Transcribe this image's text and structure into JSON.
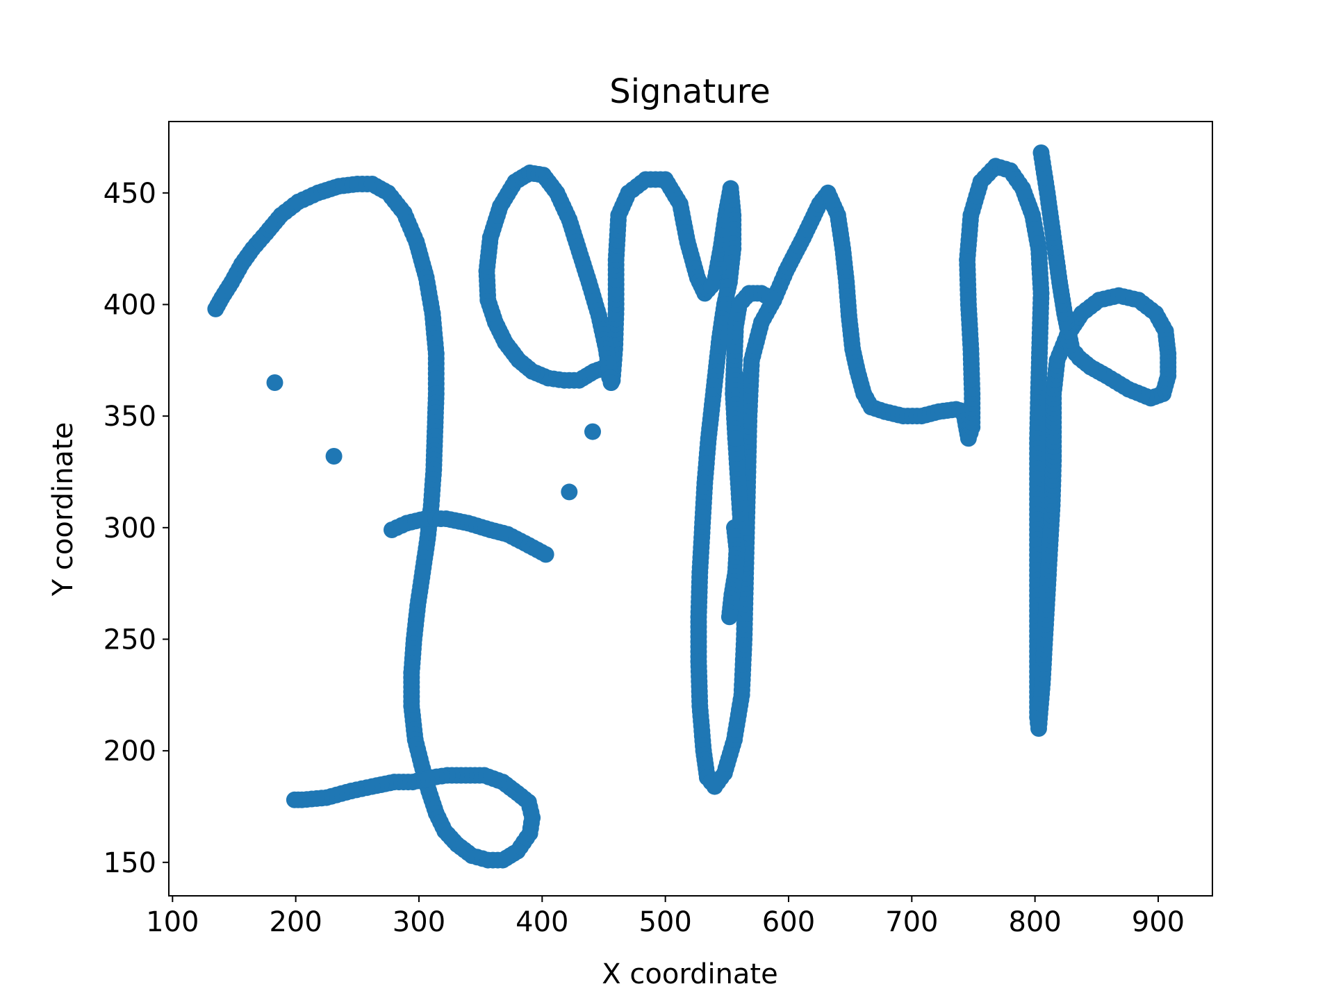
{
  "chart_data": {
    "type": "scatter",
    "title": "Signature",
    "xlabel": "X coordinate",
    "ylabel": "Y coordinate",
    "xlim": [
      97,
      944
    ],
    "ylim": [
      135,
      482
    ],
    "xticks": [
      100,
      200,
      300,
      400,
      500,
      600,
      700,
      800,
      900
    ],
    "yticks": [
      150,
      200,
      250,
      300,
      350,
      400,
      450
    ],
    "grid": false,
    "color": "#1f77b4",
    "series": [
      {
        "strokes": [
          [
            [
              135,
              398
            ],
            [
              140,
              403
            ],
            [
              148,
              410
            ],
            [
              156,
              418
            ],
            [
              165,
              425
            ],
            [
              176,
              432
            ],
            [
              188,
              440
            ],
            [
              202,
              446
            ],
            [
              218,
              450
            ],
            [
              235,
              453
            ],
            [
              250,
              454
            ],
            [
              262,
              454
            ],
            [
              275,
              450
            ],
            [
              288,
              441
            ],
            [
              298,
              428
            ],
            [
              306,
              412
            ],
            [
              311,
              396
            ],
            [
              314,
              378
            ],
            [
              314,
              360
            ],
            [
              313,
              343
            ],
            [
              312,
              326
            ],
            [
              310,
              310
            ],
            [
              307,
              295
            ],
            [
              303,
              280
            ],
            [
              299,
              265
            ],
            [
              296,
              250
            ],
            [
              294,
              235
            ],
            [
              294,
              220
            ],
            [
              297,
              205
            ],
            [
              302,
              194
            ],
            [
              308,
              182
            ],
            [
              314,
              172
            ],
            [
              321,
              164
            ],
            [
              331,
              158
            ],
            [
              343,
              153
            ],
            [
              356,
              151
            ],
            [
              368,
              151
            ],
            [
              380,
              155
            ],
            [
              390,
              163
            ],
            [
              392,
              170
            ],
            [
              389,
              177
            ],
            [
              380,
              181
            ],
            [
              368,
              186
            ],
            [
              353,
              189
            ],
            [
              338,
              189
            ],
            [
              323,
              189
            ],
            [
              310,
              188
            ],
            [
              295,
              186
            ],
            [
              280,
              186
            ],
            [
              262,
              184
            ],
            [
              245,
              182
            ],
            [
              225,
              179
            ],
            [
              205,
              178
            ],
            [
              199,
              178
            ]
          ],
          [
            [
              278,
              299
            ],
            [
              290,
              302
            ],
            [
              305,
              304
            ],
            [
              322,
              304
            ],
            [
              340,
              302
            ],
            [
              358,
              299
            ],
            [
              372,
              297
            ],
            [
              386,
              293
            ],
            [
              403,
              288
            ]
          ],
          [
            [
              457,
              366
            ],
            [
              459,
              380
            ],
            [
              460,
              398
            ],
            [
              460,
              420
            ],
            [
              462,
              440
            ],
            [
              470,
              450
            ],
            [
              484,
              456
            ],
            [
              500,
              456
            ],
            [
              512,
              445
            ],
            [
              518,
              428
            ],
            [
              526,
              412
            ],
            [
              532,
              405
            ],
            [
              540,
              410
            ],
            [
              545,
              425
            ],
            [
              549,
              440
            ],
            [
              553,
              452
            ],
            [
              555,
              440
            ],
            [
              555,
              425
            ],
            [
              552,
              410
            ],
            [
              548,
              400
            ],
            [
              544,
              385
            ],
            [
              541,
              370
            ],
            [
              538,
              355
            ],
            [
              535,
              340
            ],
            [
              532,
              320
            ],
            [
              530,
              300
            ],
            [
              528,
              280
            ],
            [
              527,
              260
            ],
            [
              527,
              240
            ],
            [
              528,
              220
            ],
            [
              531,
              200
            ],
            [
              534,
              188
            ],
            [
              540,
              184
            ],
            [
              548,
              190
            ],
            [
              556,
              205
            ],
            [
              562,
              225
            ],
            [
              564,
              250
            ],
            [
              565,
              275
            ],
            [
              566,
              300
            ],
            [
              567,
              325
            ],
            [
              568,
              350
            ],
            [
              570,
              375
            ],
            [
              578,
              392
            ],
            [
              588,
              402
            ],
            [
              598,
              415
            ],
            [
              612,
              430
            ],
            [
              625,
              445
            ],
            [
              632,
              450
            ],
            [
              640,
              440
            ],
            [
              644,
              425
            ],
            [
              647,
              410
            ],
            [
              649,
              395
            ],
            [
              652,
              380
            ],
            [
              656,
              370
            ],
            [
              661,
              360
            ],
            [
              667,
              354
            ],
            [
              678,
              352
            ],
            [
              693,
              350
            ],
            [
              708,
              350
            ],
            [
              722,
              352
            ],
            [
              736,
              353
            ],
            [
              742,
              352
            ],
            [
              746,
              340
            ],
            [
              749,
              345
            ],
            [
              749,
              360
            ],
            [
              748,
              380
            ],
            [
              746,
              400
            ],
            [
              745,
              420
            ],
            [
              748,
              440
            ],
            [
              756,
              455
            ],
            [
              768,
              462
            ],
            [
              780,
              460
            ],
            [
              790,
              452
            ],
            [
              798,
              440
            ],
            [
              803,
              425
            ],
            [
              805,
              405
            ],
            [
              804,
              385
            ],
            [
              803,
              365
            ],
            [
              802,
              340
            ],
            [
              802,
              315
            ],
            [
              802,
              290
            ],
            [
              802,
              265
            ],
            [
              802,
              240
            ],
            [
              802,
              215
            ],
            [
              803,
              210
            ],
            [
              806,
              230
            ],
            [
              808,
              250
            ],
            [
              810,
              270
            ],
            [
              812,
              290
            ],
            [
              814,
              310
            ],
            [
              815,
              330
            ],
            [
              815,
              345
            ],
            [
              815,
              360
            ],
            [
              818,
              375
            ],
            [
              826,
              386
            ],
            [
              838,
              396
            ],
            [
              852,
              402
            ],
            [
              868,
              404
            ],
            [
              884,
              402
            ],
            [
              898,
              396
            ],
            [
              906,
              388
            ],
            [
              908,
              378
            ],
            [
              908,
              368
            ],
            [
              904,
              360
            ],
            [
              894,
              358
            ],
            [
              876,
              362
            ],
            [
              858,
              368
            ],
            [
              845,
              372
            ],
            [
              836,
              376
            ],
            [
              830,
              380
            ],
            [
              824,
              396
            ],
            [
              820,
              410
            ],
            [
              815,
              430
            ],
            [
              810,
              450
            ],
            [
              805,
              468
            ]
          ],
          [
            [
              456,
              365
            ],
            [
              452,
              372
            ],
            [
              442,
              370
            ],
            [
              430,
              366
            ],
            [
              418,
              366
            ],
            [
              405,
              367
            ],
            [
              392,
              370
            ],
            [
              381,
              375
            ],
            [
              370,
              383
            ],
            [
              362,
              392
            ],
            [
              356,
              402
            ],
            [
              355,
              415
            ],
            [
              358,
              430
            ],
            [
              366,
              444
            ],
            [
              378,
              455
            ],
            [
              390,
              459
            ],
            [
              401,
              458
            ],
            [
              412,
              450
            ],
            [
              422,
              438
            ],
            [
              430,
              424
            ],
            [
              438,
              410
            ],
            [
              446,
              395
            ],
            [
              452,
              380
            ],
            [
              456,
              365
            ]
          ],
          [
            [
              561,
              304
            ],
            [
              559,
              322
            ],
            [
              557,
              340
            ],
            [
              555,
              360
            ],
            [
              556,
              375
            ],
            [
              557,
              390
            ],
            [
              560,
              400
            ],
            [
              568,
              405
            ],
            [
              578,
              405
            ],
            [
              588,
              402
            ]
          ],
          [
            [
              556,
              300
            ],
            [
              558,
              290
            ],
            [
              557,
              280
            ],
            [
              554,
              270
            ],
            [
              552,
              260
            ]
          ],
          [
            [
              557,
              368
            ],
            [
              557,
              355
            ],
            [
              557,
              340
            ]
          ]
        ],
        "isolated_points": [
          [
            183,
            365
          ],
          [
            231,
            332
          ],
          [
            422,
            316
          ],
          [
            441,
            343
          ]
        ]
      }
    ]
  }
}
